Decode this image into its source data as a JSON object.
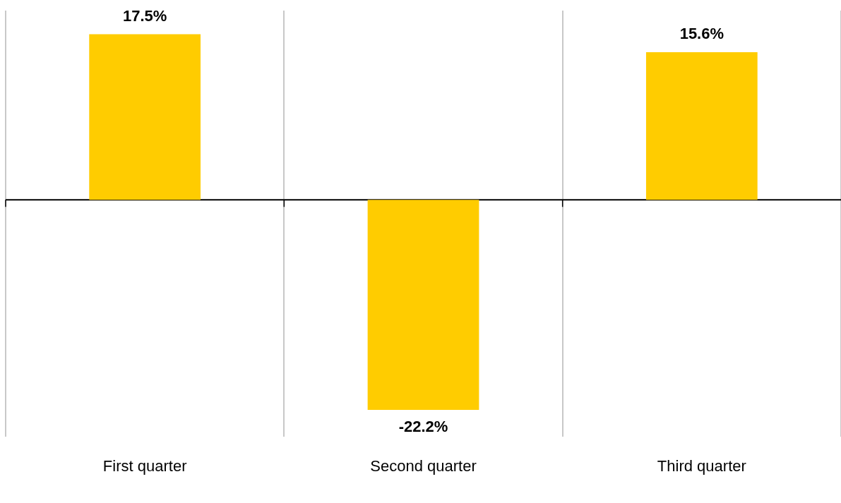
{
  "chart_data": {
    "type": "bar",
    "categories": [
      "First quarter",
      "Second quarter",
      "Third quarter"
    ],
    "values": [
      17.5,
      -22.2,
      15.6
    ],
    "color": "#ffcc00",
    "value_labels": [
      "17.5%",
      "-22.2%",
      "15.6%"
    ],
    "grid": "x",
    "legend": false
  }
}
